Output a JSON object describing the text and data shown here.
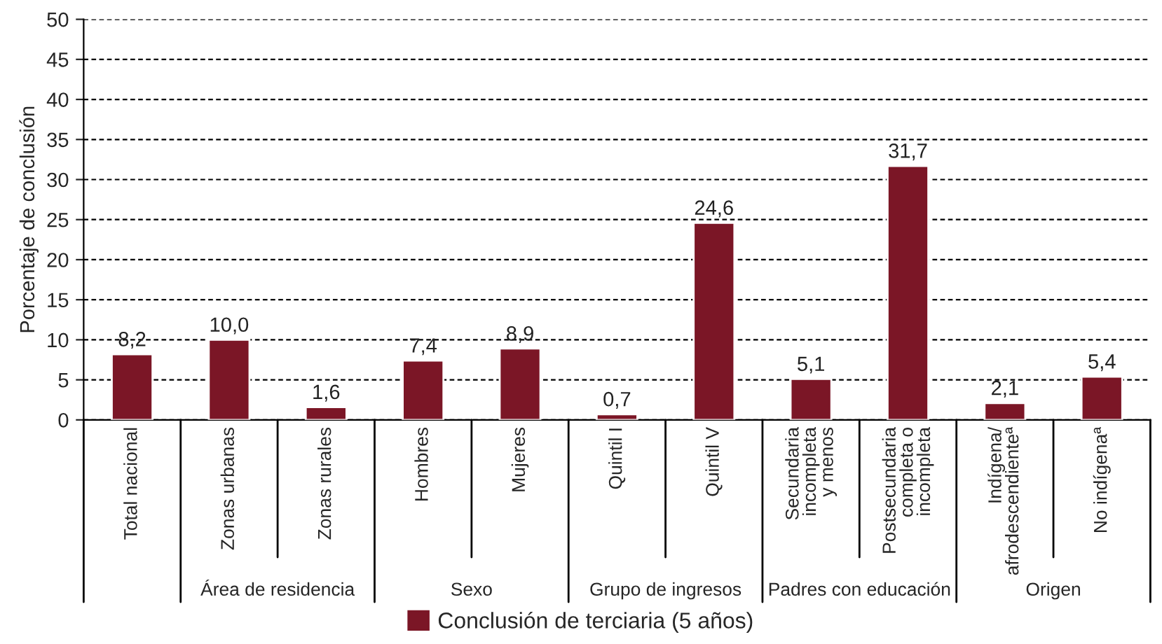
{
  "chart_data": {
    "type": "bar",
    "ylabel": "Porcentaje de conclusión",
    "categories": [
      "Total nacional",
      "Zonas urbanas",
      "Zonas rurales",
      "Hombres",
      "Mujeres",
      "Quintil I",
      "Quintil V",
      "Secundaria\nincompleta\ny menos",
      "Postsecundaria\ncompleta o\nincompleta",
      "Indígena/\nafrodescendienteª",
      "No indígenaª"
    ],
    "series": [
      {
        "name": "Conclusión de terciaria (5 años)",
        "color": "#7b1626",
        "values": [
          8.2,
          10.0,
          1.6,
          7.4,
          8.9,
          0.7,
          24.6,
          5.1,
          31.7,
          2.1,
          5.4
        ],
        "value_labels": [
          "8,2",
          "10,0",
          "1,6",
          "7,4",
          "8,9",
          "0,7",
          "24,6",
          "5,1",
          "31,7",
          "2,1",
          "5,4"
        ]
      }
    ],
    "ylim": [
      0,
      50
    ],
    "yticks": [
      0,
      5,
      10,
      15,
      20,
      25,
      30,
      35,
      40,
      45,
      50
    ],
    "annotations": [
      "Área de residencia",
      "Sexo",
      "Grupo de ingresos",
      "Padres con educación",
      "Origen"
    ],
    "grid": "y",
    "legend": "bottom"
  }
}
